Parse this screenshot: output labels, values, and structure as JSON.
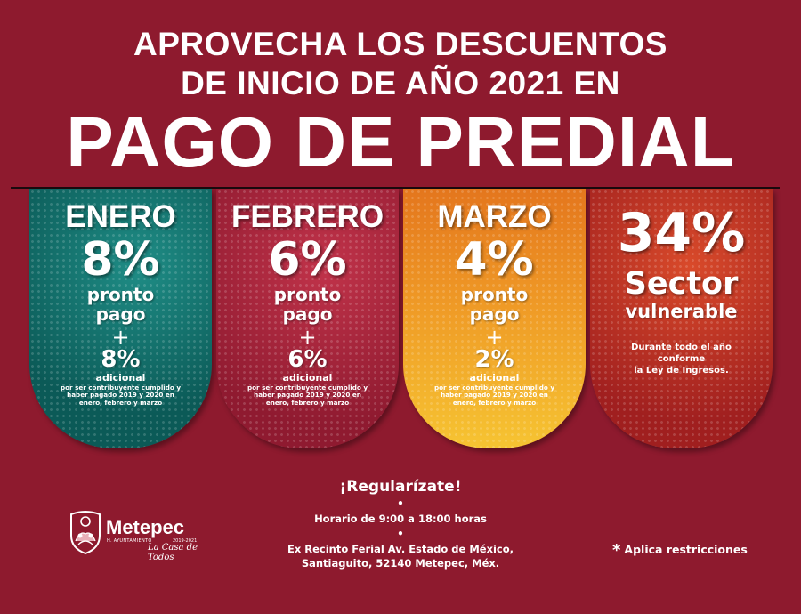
{
  "headline": {
    "line1": "APROVECHA LOS DESCUENTOS",
    "line2": "DE INICIO DE AÑO 2021 EN",
    "line3": "PAGO DE PREDIAL"
  },
  "cards": [
    {
      "month": "ENERO",
      "percent": "8%",
      "label1": "pronto",
      "label2": "pago",
      "plus": "+",
      "extra_percent": "8%",
      "extra_label": "adicional",
      "fine_print": "por ser contribuyente cumplido y haber pagado 2019 y 2020 en enero, febrero y marzo",
      "color": "#0f6e6a"
    },
    {
      "month": "FEBRERO",
      "percent": "6%",
      "label1": "pronto",
      "label2": "pago",
      "plus": "+",
      "extra_percent": "6%",
      "extra_label": "adicional",
      "fine_print": "por ser contribuyente cumplido y haber pagado 2019 y 2020 en enero, febrero y marzo",
      "color": "#b02a42"
    },
    {
      "month": "MARZO",
      "percent": "4%",
      "label1": "pronto",
      "label2": "pago",
      "plus": "+",
      "extra_percent": "2%",
      "extra_label": "adicional",
      "fine_print": "por ser contribuyente cumplido y haber pagado 2019 y 2020 en enero, febrero y marzo",
      "color": "#ee9a26"
    },
    {
      "percent": "34%",
      "label1": "Sector",
      "label2": "vulnerable",
      "note_line1": "Durante todo el año",
      "note_line2": "conforme",
      "note_line3": "la Ley de Ingresos.",
      "color": "#c23a24"
    }
  ],
  "footer": {
    "call": "¡Regularízate!",
    "bullet": "•",
    "hours": "Horario de 9:00 a 18:00 horas",
    "address_line1": "Ex Recinto Ferial  Av. Estado de México,",
    "address_line2": "Santiaguito, 52140 Metepec, Méx.",
    "restrictions_mark": "*",
    "restrictions": "Aplica  restricciones"
  },
  "logo": {
    "name": "Metepec",
    "sub": "H. AYUNTAMIENTO",
    "years": "2019-2021",
    "tagline": "La Casa de Todos",
    "icon": "metepec-shield-icon"
  },
  "colors": {
    "background": "#8e1a2e",
    "text": "#ffffff"
  }
}
